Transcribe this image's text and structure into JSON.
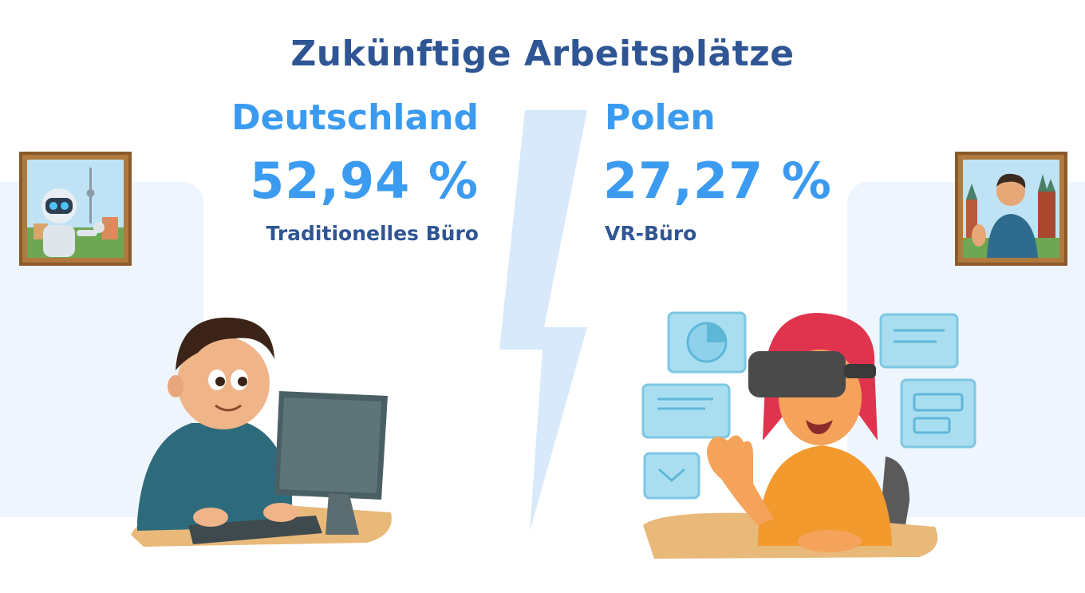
{
  "title": "Zukünftige Arbeitsplätze",
  "germany": {
    "country": "Deutschland",
    "percentage": "52,94 %",
    "label": "Traditionelles Büro"
  },
  "poland": {
    "country": "Polen",
    "percentage": "27,27 %",
    "label": "VR-Büro"
  },
  "colors": {
    "title": "#2f5594",
    "accent": "#3b9bf0",
    "panel": "#eef5fd",
    "bolt": "#d8e9fb"
  },
  "illustrations": {
    "left_frame": "robot-portrait-icon",
    "right_frame": "man-portrait-icon",
    "left_scene": "person-at-computer-icon",
    "right_scene": "person-with-vr-headset-icon"
  }
}
